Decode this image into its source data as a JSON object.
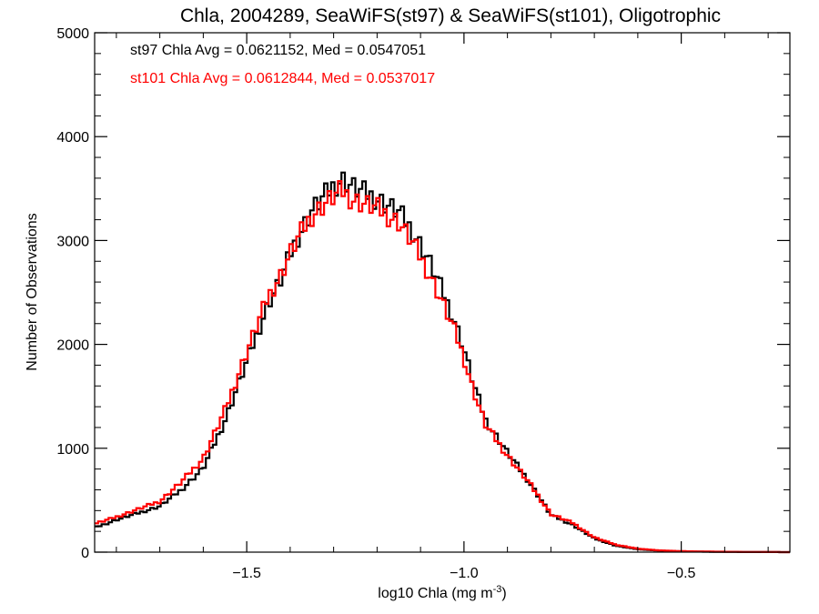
{
  "chart_data": {
    "type": "line",
    "step": true,
    "title": "Chla, 2004289, SeaWiFS(st97) & SeaWiFS(st101), Oligotrophic",
    "xlabel": "log10 Chla (mg m",
    "xlabel_superscript": "-3",
    "xlabel_suffix": ")",
    "ylabel": "Number of Observations",
    "xlim": [
      -1.85,
      -0.25
    ],
    "ylim": [
      0,
      5000
    ],
    "xticks": [
      -1.5,
      -1.0,
      -0.5
    ],
    "xtick_labels": [
      "−1.5",
      "−1.0",
      "−0.5"
    ],
    "yticks": [
      0,
      1000,
      2000,
      3000,
      4000,
      5000
    ],
    "ytick_labels": [
      "0",
      "1000",
      "2000",
      "3000",
      "4000",
      "5000"
    ],
    "grid": false,
    "legend_position": "top-left",
    "series": [
      {
        "name": "st97",
        "color": "#000000",
        "legend_text": "st97 Chla Avg = 0.0621152, Med = 0.0547051",
        "x": [
          -1.85,
          -1.8,
          -1.75,
          -1.7,
          -1.65,
          -1.6,
          -1.55,
          -1.5,
          -1.45,
          -1.42,
          -1.4,
          -1.38,
          -1.35,
          -1.32,
          -1.3,
          -1.28,
          -1.27,
          -1.25,
          -1.2,
          -1.15,
          -1.12,
          -1.1,
          -1.08,
          -1.05,
          -1.02,
          -1.0,
          -0.98,
          -0.95,
          -0.9,
          -0.85,
          -0.8,
          -0.75,
          -0.7,
          -0.65,
          -0.6,
          -0.55,
          -0.5,
          -0.45,
          -0.4,
          -0.35,
          -0.3,
          -0.25
        ],
        "y": [
          250,
          330,
          400,
          470,
          640,
          860,
          1350,
          1950,
          2550,
          2800,
          3050,
          3250,
          3500,
          3650,
          3750,
          3820,
          3790,
          3720,
          3620,
          3480,
          3300,
          3150,
          2980,
          2680,
          2350,
          2080,
          1750,
          1350,
          1020,
          720,
          380,
          280,
          140,
          65,
          30,
          15,
          8,
          5,
          3,
          2,
          1,
          0
        ]
      },
      {
        "name": "st101",
        "color": "#ff0000",
        "legend_text": "st101 Chla Avg = 0.0612844, Med = 0.0537017",
        "x": [
          -1.85,
          -1.8,
          -1.75,
          -1.7,
          -1.65,
          -1.6,
          -1.55,
          -1.5,
          -1.45,
          -1.42,
          -1.4,
          -1.38,
          -1.35,
          -1.32,
          -1.3,
          -1.28,
          -1.27,
          -1.25,
          -1.2,
          -1.15,
          -1.12,
          -1.1,
          -1.08,
          -1.05,
          -1.02,
          -1.0,
          -0.98,
          -0.95,
          -0.9,
          -0.85,
          -0.8,
          -0.75,
          -0.7,
          -0.65,
          -0.6,
          -0.55,
          -0.5,
          -0.45,
          -0.4,
          -0.35,
          -0.3,
          -0.25
        ],
        "y": [
          290,
          360,
          440,
          520,
          720,
          960,
          1450,
          2050,
          2620,
          2850,
          3060,
          3230,
          3450,
          3570,
          3640,
          3700,
          3660,
          3600,
          3520,
          3380,
          3180,
          3020,
          2850,
          2560,
          2250,
          1990,
          1680,
          1300,
          990,
          710,
          390,
          300,
          150,
          75,
          35,
          18,
          10,
          6,
          4,
          2,
          1,
          0
        ]
      }
    ]
  }
}
